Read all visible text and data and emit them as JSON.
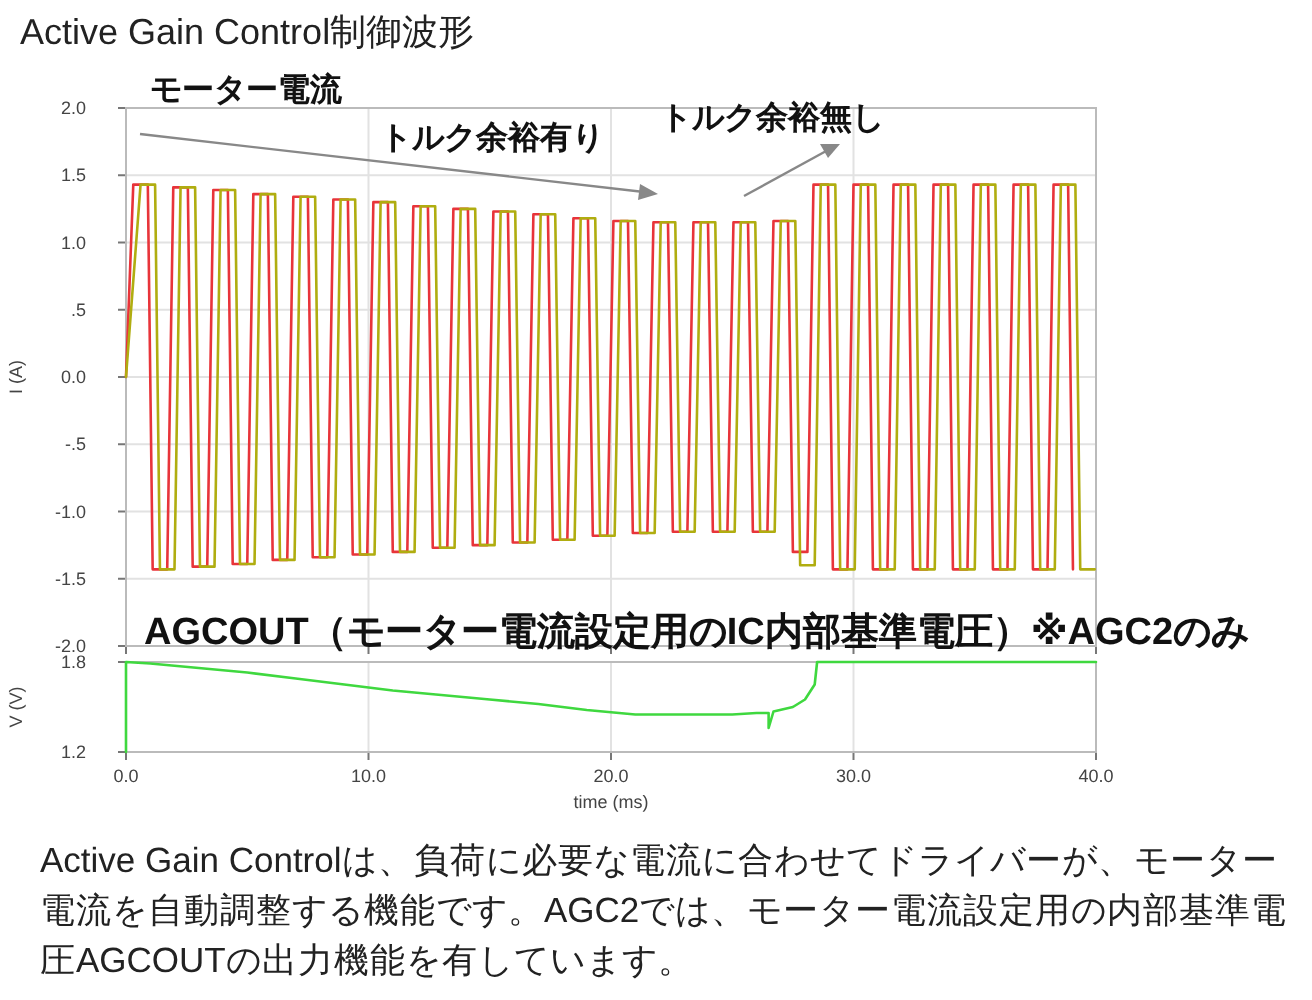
{
  "chart_data": [
    {
      "type": "line",
      "title": "Active Gain Control制御波形",
      "ylabel": "I (A)",
      "xlim": [
        0,
        40
      ],
      "ylim": [
        -2,
        2
      ],
      "xticks": [
        0,
        10,
        20,
        30,
        40
      ],
      "yticks": [
        {
          "value": 2,
          "label": "2.0"
        },
        {
          "value": 1.5,
          "label": "1.5"
        },
        {
          "value": 1,
          "label": "1.0"
        },
        {
          "value": 0.5,
          "label": ".5"
        },
        {
          "value": 0,
          "label": "0.0"
        },
        {
          "value": -0.5,
          "label": "-.5"
        },
        {
          "value": -1,
          "label": "-1.0"
        },
        {
          "value": -1.5,
          "label": "-1.5"
        },
        {
          "value": -2,
          "label": "-2.0"
        }
      ],
      "tick_labels": "y",
      "grid": true,
      "annotations": [
        "モーター電流",
        "トルク余裕有り",
        "トルク余裕無し"
      ],
      "series": [
        {
          "color": "#e8343a",
          "x": [
            0,
            0.3,
            0.9,
            1.1,
            1.7,
            1.95,
            2.55,
            2.75,
            3.35,
            3.6,
            4.2,
            4.4,
            5.0,
            5.25,
            5.85,
            6.05,
            6.65,
            6.9,
            7.5,
            7.7,
            8.3,
            8.55,
            9.15,
            9.35,
            9.95,
            10.2,
            10.8,
            11.0,
            11.6,
            11.85,
            12.45,
            12.65,
            13.25,
            13.5,
            14.1,
            14.3,
            14.9,
            15.15,
            15.75,
            15.95,
            16.55,
            16.8,
            17.4,
            17.6,
            18.2,
            18.45,
            19.05,
            19.25,
            19.85,
            20.1,
            20.7,
            20.9,
            21.5,
            21.75,
            22.35,
            22.55,
            23.15,
            23.4,
            24.0,
            24.2,
            24.8,
            25.05,
            25.65,
            25.85,
            26.45,
            26.7,
            27.3,
            27.5,
            28.1,
            28.35,
            28.95,
            29.15,
            29.75,
            30.0,
            30.6,
            30.8,
            31.4,
            31.65,
            32.25,
            32.45,
            33.05,
            33.3,
            33.9,
            34.1,
            34.7,
            34.95,
            35.55,
            35.75,
            36.35,
            36.6,
            37.2,
            37.4,
            38.0,
            38.25,
            38.85,
            39.05
          ],
          "values": [
            0,
            1.43,
            1.43,
            -1.43,
            -1.43,
            1.41,
            1.41,
            -1.41,
            -1.41,
            1.39,
            1.39,
            -1.39,
            -1.39,
            1.36,
            1.36,
            -1.36,
            -1.36,
            1.34,
            1.34,
            -1.34,
            -1.34,
            1.32,
            1.32,
            -1.32,
            -1.32,
            1.3,
            1.3,
            -1.3,
            -1.3,
            1.27,
            1.27,
            -1.27,
            -1.27,
            1.25,
            1.25,
            -1.25,
            -1.25,
            1.23,
            1.23,
            -1.23,
            -1.23,
            1.21,
            1.21,
            -1.21,
            -1.21,
            1.18,
            1.18,
            -1.18,
            -1.18,
            1.16,
            1.16,
            -1.16,
            -1.16,
            1.15,
            1.15,
            -1.15,
            -1.15,
            1.15,
            1.15,
            -1.15,
            -1.15,
            1.15,
            1.15,
            -1.15,
            -1.15,
            1.16,
            1.16,
            -1.3,
            -1.3,
            1.43,
            1.43,
            -1.43,
            -1.43,
            1.43,
            1.43,
            -1.43,
            -1.43,
            1.43,
            1.43,
            -1.43,
            -1.43,
            1.43,
            1.43,
            -1.43,
            -1.43,
            1.43,
            1.43,
            -1.43,
            -1.43,
            1.43,
            1.43,
            -1.43,
            -1.43,
            1.43,
            1.43,
            -1.43
          ]
        },
        {
          "color": "#b0ad10",
          "x": [
            0,
            0.6,
            1.2,
            1.4,
            2.0,
            2.25,
            2.85,
            3.05,
            3.65,
            3.9,
            4.5,
            4.7,
            5.3,
            5.55,
            6.15,
            6.35,
            6.95,
            7.2,
            7.8,
            8.0,
            8.6,
            8.85,
            9.45,
            9.65,
            10.25,
            10.5,
            11.1,
            11.3,
            11.9,
            12.15,
            12.75,
            12.95,
            13.55,
            13.8,
            14.4,
            14.6,
            15.2,
            15.45,
            16.05,
            16.25,
            16.85,
            17.1,
            17.7,
            17.9,
            18.5,
            18.75,
            19.35,
            19.55,
            20.15,
            20.4,
            21.0,
            21.2,
            21.8,
            22.05,
            22.65,
            22.85,
            23.45,
            23.7,
            24.3,
            24.5,
            25.1,
            25.35,
            25.95,
            26.15,
            26.75,
            27.0,
            27.6,
            27.8,
            28.4,
            28.65,
            29.25,
            29.45,
            30.05,
            30.3,
            30.9,
            31.1,
            31.7,
            31.95,
            32.55,
            32.75,
            33.35,
            33.6,
            34.2,
            34.4,
            35.0,
            35.25,
            35.85,
            36.05,
            36.65,
            36.9,
            37.5,
            37.7,
            38.3,
            38.55,
            39.15,
            39.35,
            39.95
          ],
          "values": [
            0,
            1.43,
            1.43,
            -1.43,
            -1.43,
            1.41,
            1.41,
            -1.41,
            -1.41,
            1.39,
            1.39,
            -1.39,
            -1.39,
            1.36,
            1.36,
            -1.36,
            -1.36,
            1.34,
            1.34,
            -1.34,
            -1.34,
            1.32,
            1.32,
            -1.32,
            -1.32,
            1.3,
            1.3,
            -1.3,
            -1.3,
            1.27,
            1.27,
            -1.27,
            -1.27,
            1.25,
            1.25,
            -1.25,
            -1.25,
            1.23,
            1.23,
            -1.23,
            -1.23,
            1.21,
            1.21,
            -1.21,
            -1.21,
            1.18,
            1.18,
            -1.18,
            -1.18,
            1.16,
            1.16,
            -1.16,
            -1.16,
            1.15,
            1.15,
            -1.15,
            -1.15,
            1.15,
            1.15,
            -1.15,
            -1.15,
            1.15,
            1.15,
            -1.15,
            -1.15,
            1.16,
            1.16,
            -1.4,
            -1.4,
            1.43,
            1.43,
            -1.43,
            -1.43,
            1.43,
            1.43,
            -1.43,
            -1.43,
            1.43,
            1.43,
            -1.43,
            -1.43,
            1.43,
            1.43,
            -1.43,
            -1.43,
            1.43,
            1.43,
            -1.43,
            -1.43,
            1.43,
            1.43,
            -1.43,
            -1.43,
            1.43,
            1.43,
            -1.43,
            -1.43
          ]
        }
      ]
    },
    {
      "type": "line",
      "title": "AGCOUT（モーター電流設定用のIC内部基準電圧）※AGC2のみ",
      "xlabel": "time (ms)",
      "ylabel": "V (V)",
      "xlim": [
        0,
        40
      ],
      "ylim": [
        1.2,
        1.8
      ],
      "xticks": [
        {
          "value": 0,
          "label": "0.0"
        },
        {
          "value": 10,
          "label": "10.0"
        },
        {
          "value": 20,
          "label": "20.0"
        },
        {
          "value": 30,
          "label": "30.0"
        },
        {
          "value": 40,
          "label": "40.0"
        }
      ],
      "yticks": [
        1.8,
        1.2
      ],
      "grid": true,
      "annotations": [
        "Active Gain Controlは、負荷に必要な電流に合わせてドライバーが、モーター電流を自動調整する機能です。AGC2では、モーター電流設定用の内部基準電圧AGCOUTの出力機能を有しています。"
      ],
      "series": [
        {
          "color": "#3fd83f",
          "x": [
            0,
            0,
            1,
            3,
            5,
            7,
            9,
            11,
            13,
            15,
            17,
            19,
            21,
            23,
            25,
            26,
            26.5,
            26.5,
            26.7,
            27.5,
            28,
            28.2,
            28.4,
            28.5,
            40
          ],
          "values": [
            1.2,
            1.8,
            1.79,
            1.76,
            1.73,
            1.69,
            1.65,
            1.61,
            1.58,
            1.55,
            1.52,
            1.48,
            1.45,
            1.45,
            1.45,
            1.46,
            1.46,
            1.36,
            1.47,
            1.5,
            1.55,
            1.6,
            1.65,
            1.8,
            1.8
          ]
        }
      ]
    }
  ]
}
